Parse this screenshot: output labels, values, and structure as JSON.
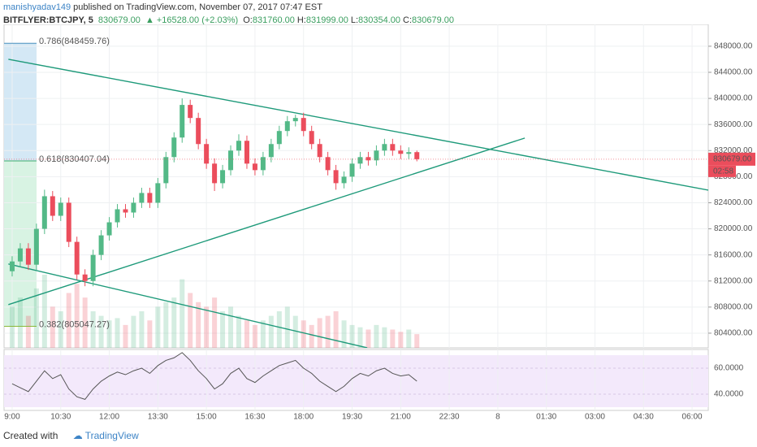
{
  "header": {
    "author": "manishyadav149",
    "published": "published on TradingView.com, November 07, 2017 07:47 EST",
    "symbol": "BITFLYER:BTCJPY, 5",
    "last": "830679.00",
    "change": "+16528.00 (+2.03%)",
    "ohlc": [
      {
        "key": "O:",
        "value": "831760.00"
      },
      {
        "key": "H:",
        "value": "831999.00"
      },
      {
        "key": "L:",
        "value": "830354.00"
      },
      {
        "key": "C:",
        "value": "830679.00"
      }
    ]
  },
  "chart_data": {
    "type": "candlestick",
    "x": [
      0,
      15,
      30,
      45,
      60,
      75,
      90,
      105,
      120,
      135,
      150,
      165,
      180,
      195,
      210,
      225,
      240,
      255,
      270,
      285,
      300,
      315,
      330,
      345,
      360,
      375,
      390,
      405,
      420,
      435,
      450,
      465,
      480,
      495,
      510,
      525,
      540,
      555,
      570,
      585,
      600,
      615,
      630,
      645,
      660,
      675,
      690,
      705,
      720,
      735,
      750
    ],
    "candles": [
      [
        813500,
        815800,
        812700,
        815000
      ],
      [
        815000,
        817800,
        814200,
        817000
      ],
      [
        817000,
        817800,
        813700,
        814500
      ],
      [
        814500,
        820800,
        813700,
        820000
      ],
      [
        820000,
        826000,
        819200,
        825000
      ],
      [
        825000,
        825800,
        821200,
        822000
      ],
      [
        822000,
        824800,
        821200,
        824000
      ],
      [
        824000,
        824800,
        817200,
        818000
      ],
      [
        818000,
        818800,
        812200,
        813000
      ],
      [
        813000,
        813800,
        811200,
        812000
      ],
      [
        812000,
        816800,
        811200,
        816000
      ],
      [
        816000,
        819800,
        815200,
        819000
      ],
      [
        819000,
        821800,
        818200,
        821000
      ],
      [
        821000,
        823800,
        820200,
        823000
      ],
      [
        823000,
        823800,
        821700,
        822500
      ],
      [
        822500,
        824800,
        821700,
        824000
      ],
      [
        824000,
        826300,
        823200,
        825500
      ],
      [
        825500,
        826300,
        823200,
        824000
      ],
      [
        824000,
        827800,
        823200,
        827000
      ],
      [
        827000,
        831800,
        826200,
        831000
      ],
      [
        831000,
        834800,
        830200,
        834000
      ],
      [
        834000,
        840000,
        833200,
        839000
      ],
      [
        839000,
        839800,
        836200,
        837000
      ],
      [
        837000,
        837800,
        832200,
        833000
      ],
      [
        833000,
        833800,
        829200,
        830000
      ],
      [
        830000,
        830800,
        825800,
        827000
      ],
      [
        827000,
        829800,
        826200,
        829000
      ],
      [
        829000,
        832800,
        828200,
        832000
      ],
      [
        832000,
        834500,
        831200,
        833500
      ],
      [
        833500,
        834300,
        829200,
        830000
      ],
      [
        830000,
        830800,
        828200,
        829000
      ],
      [
        829000,
        831800,
        828200,
        831000
      ],
      [
        831000,
        833800,
        830200,
        833000
      ],
      [
        833000,
        835800,
        832200,
        835000
      ],
      [
        835000,
        837300,
        834200,
        836500
      ],
      [
        836500,
        837500,
        835700,
        837000
      ],
      [
        837000,
        837800,
        834200,
        835000
      ],
      [
        835000,
        835800,
        832200,
        833000
      ],
      [
        833000,
        833800,
        830200,
        831000
      ],
      [
        831000,
        831800,
        828200,
        829000
      ],
      [
        829000,
        829800,
        826000,
        827000
      ],
      [
        827000,
        828800,
        826200,
        828000
      ],
      [
        828000,
        830800,
        827200,
        830000
      ],
      [
        830000,
        831800,
        829200,
        831000
      ],
      [
        831000,
        831800,
        829700,
        830500
      ],
      [
        830500,
        832800,
        829700,
        832000
      ],
      [
        832000,
        833800,
        831200,
        833000
      ],
      [
        833000,
        833800,
        831200,
        832000
      ],
      [
        832000,
        832800,
        830700,
        831500
      ],
      [
        831500,
        832500,
        830700,
        831760
      ],
      [
        831760,
        831999,
        830354,
        830679
      ]
    ],
    "volume": [
      900,
      1100,
      700,
      1300,
      1600,
      900,
      800,
      1200,
      1400,
      1100,
      800,
      700,
      600,
      650,
      500,
      700,
      800,
      600,
      900,
      1000,
      1100,
      1500,
      1200,
      1000,
      900,
      1100,
      800,
      900,
      700,
      600,
      500,
      600,
      700,
      800,
      900,
      700,
      600,
      500,
      650,
      700,
      800,
      600,
      500,
      450,
      400,
      500,
      450,
      400,
      350,
      400,
      300
    ],
    "up_color": "#53b987",
    "down_color": "#eb4d5c",
    "xlim": [
      -15,
      1290
    ],
    "xticks": [
      {
        "value": 0,
        "label": "9:00"
      },
      {
        "value": 90,
        "label": "10:30"
      },
      {
        "value": 180,
        "label": "12:00"
      },
      {
        "value": 270,
        "label": "13:30"
      },
      {
        "value": 360,
        "label": "15:00"
      },
      {
        "value": 450,
        "label": "16:30"
      },
      {
        "value": 540,
        "label": "18:00"
      },
      {
        "value": 630,
        "label": "19:30"
      },
      {
        "value": 720,
        "label": "21:00"
      },
      {
        "value": 810,
        "label": "22:30"
      },
      {
        "value": 900,
        "label": "8"
      },
      {
        "value": 990,
        "label": "01:30"
      },
      {
        "value": 1080,
        "label": "03:00"
      },
      {
        "value": 1170,
        "label": "04:30"
      },
      {
        "value": 1260,
        "label": "06:00"
      }
    ],
    "ylim": [
      801750,
      851350
    ],
    "yticks": [
      {
        "value": 804000,
        "label": "804000.00"
      },
      {
        "value": 808000,
        "label": "808000.00"
      },
      {
        "value": 812000,
        "label": "812000.00"
      },
      {
        "value": 816000,
        "label": "816000.00"
      },
      {
        "value": 820000,
        "label": "820000.00"
      },
      {
        "value": 824000,
        "label": "824000.00"
      },
      {
        "value": 828000,
        "label": "828000.00"
      },
      {
        "value": 832000,
        "label": "832000.00"
      },
      {
        "value": 836000,
        "label": "836000.00"
      },
      {
        "value": 840000,
        "label": "840000.00"
      },
      {
        "value": 844000,
        "label": "844000.00"
      },
      {
        "value": 848000,
        "label": "848000.00"
      }
    ],
    "last_price": {
      "value": 830679,
      "label": "830679.00"
    },
    "countdown": "02:58",
    "fib_levels": [
      {
        "value": 848459.76,
        "label": "0.786(848459.76)",
        "color": "#4a90bd"
      },
      {
        "value": 830407.04,
        "label": "0.618(830407.04)",
        "color": "#3fae6e"
      },
      {
        "value": 805047.27,
        "label": "0.382(805047.27)",
        "color": "#8ab83a"
      }
    ],
    "trend_lines": [
      {
        "x": [
          -7,
          1378
        ],
        "y": [
          846006,
          824575
        ]
      },
      {
        "x": [
          -7,
          950
        ],
        "y": [
          808377,
          833920
        ]
      },
      {
        "x": [
          -7,
          658
        ],
        "y": [
          814608,
          801757
        ]
      }
    ],
    "rsi": {
      "values": [
        48,
        45,
        42,
        50,
        58,
        52,
        55,
        44,
        38,
        36,
        44,
        50,
        54,
        57,
        55,
        58,
        60,
        56,
        62,
        66,
        68,
        72,
        66,
        58,
        52,
        44,
        48,
        56,
        60,
        52,
        49,
        54,
        58,
        62,
        64,
        66,
        60,
        56,
        50,
        46,
        42,
        46,
        52,
        56,
        54,
        58,
        60,
        56,
        54,
        55,
        50
      ],
      "ylim": [
        27.5,
        74.4
      ],
      "yticks": [
        {
          "value": 60,
          "label": "60.0000"
        },
        {
          "value": 40,
          "label": "40.0000"
        }
      ],
      "band": [
        30,
        70
      ]
    },
    "grid": true
  },
  "footer": {
    "created": "Created with",
    "brand": "TradingView"
  }
}
